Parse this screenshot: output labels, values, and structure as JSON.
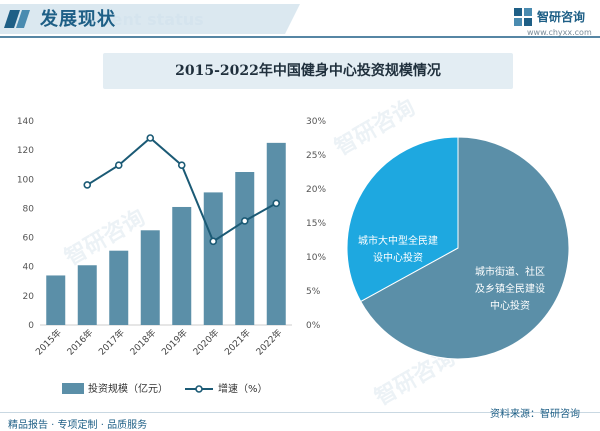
{
  "header": {
    "title": "发展现状",
    "subtitle_en": "ment status"
  },
  "brand": {
    "name": "智研咨询",
    "url": "www.chyxx.com"
  },
  "footer": {
    "left": "精品报告 · 专项定制 · 品质服务",
    "source": "资料来源：智研咨询"
  },
  "watermark": "智研咨询",
  "colors": {
    "bar": "#5b8fa8",
    "line": "#1b5a75",
    "pie_main": "#5b8fa8",
    "pie_small": "#1ea8e0",
    "accent": "#1e5f86"
  },
  "chart_data": [
    {
      "type": "bar+line",
      "title": "2015-2022年中国健身中心投资规模情况",
      "categories": [
        "2015年",
        "2016年",
        "2017年",
        "2018年",
        "2019年",
        "2020年",
        "2021年",
        "2022年"
      ],
      "series": [
        {
          "name": "投资规模（亿元）",
          "type": "bar",
          "axis": "left",
          "values": [
            34,
            41,
            51,
            65,
            81,
            91,
            105,
            125
          ]
        },
        {
          "name": "增速（%）",
          "type": "line",
          "axis": "right",
          "values": [
            null,
            20.6,
            23.5,
            27.5,
            23.5,
            12.3,
            15.3,
            17.9
          ]
        }
      ],
      "y_left": {
        "min": 0,
        "max": 140,
        "ticks": [
          0,
          20,
          40,
          60,
          80,
          100,
          120,
          140
        ]
      },
      "y_right": {
        "min": 0,
        "max": 30,
        "ticks": [
          "0%",
          "5%",
          "10%",
          "15%",
          "20%",
          "25%",
          "30%"
        ]
      },
      "legend_position": "bottom"
    },
    {
      "type": "pie",
      "slices": [
        {
          "label": "城市街道、社区及乡镇全民建设中心投资",
          "value": 67
        },
        {
          "label": "城市大中型全民建设中心投资",
          "value": 33
        }
      ]
    }
  ]
}
